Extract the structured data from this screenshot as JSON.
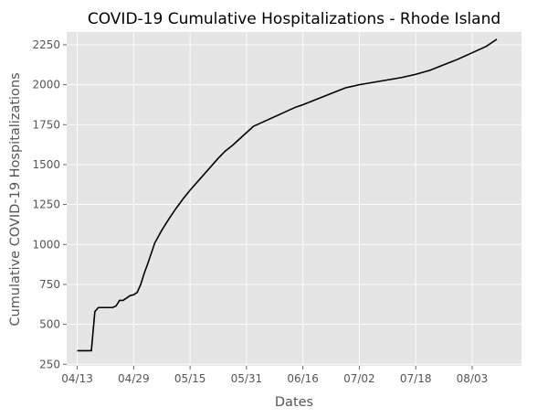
{
  "chart_data": {
    "type": "line",
    "title": "COVID-19 Cumulative Hospitalizations - Rhode Island",
    "xlabel": "Dates",
    "ylabel": "Cumulative COVID-19 Hospitalizations",
    "x_ticks": [
      "04/13",
      "04/29",
      "05/15",
      "05/31",
      "06/16",
      "07/02",
      "07/18",
      "08/03"
    ],
    "y_ticks": [
      250,
      500,
      750,
      1000,
      1250,
      1500,
      1750,
      2000,
      2250
    ],
    "xlim": [
      "2020-04-10",
      "2020-08-17"
    ],
    "ylim": [
      240,
      2330
    ],
    "grid": true,
    "colors": {
      "plot_bg": "#e5e5e5",
      "grid": "#ffffff",
      "line": "#000000"
    },
    "series": [
      {
        "x": [
          "2020-04-13",
          "2020-04-14",
          "2020-04-15",
          "2020-04-16",
          "2020-04-17",
          "2020-04-18",
          "2020-04-19",
          "2020-04-20",
          "2020-04-21",
          "2020-04-22",
          "2020-04-23",
          "2020-04-24",
          "2020-04-25",
          "2020-04-26",
          "2020-04-27",
          "2020-04-28",
          "2020-04-29",
          "2020-04-30",
          "2020-05-01",
          "2020-05-02",
          "2020-05-03",
          "2020-05-05",
          "2020-05-07",
          "2020-05-09",
          "2020-05-11",
          "2020-05-13",
          "2020-05-15",
          "2020-05-17",
          "2020-05-19",
          "2020-05-21",
          "2020-05-23",
          "2020-05-25",
          "2020-05-27",
          "2020-05-29",
          "2020-05-31",
          "2020-06-02",
          "2020-06-04",
          "2020-06-06",
          "2020-06-08",
          "2020-06-10",
          "2020-06-12",
          "2020-06-14",
          "2020-06-16",
          "2020-06-20",
          "2020-06-24",
          "2020-06-28",
          "2020-07-02",
          "2020-07-06",
          "2020-07-10",
          "2020-07-14",
          "2020-07-18",
          "2020-07-22",
          "2020-07-26",
          "2020-07-30",
          "2020-08-03",
          "2020-08-07",
          "2020-08-10"
        ],
        "y": [
          335,
          335,
          335,
          335,
          335,
          580,
          605,
          605,
          605,
          605,
          605,
          615,
          650,
          650,
          665,
          680,
          685,
          700,
          750,
          820,
          880,
          1010,
          1090,
          1160,
          1225,
          1285,
          1340,
          1390,
          1440,
          1490,
          1540,
          1585,
          1620,
          1660,
          1700,
          1740,
          1760,
          1780,
          1800,
          1820,
          1840,
          1860,
          1875,
          1910,
          1945,
          1980,
          2000,
          2015,
          2030,
          2045,
          2065,
          2090,
          2125,
          2160,
          2200,
          2240,
          2285
        ]
      }
    ]
  }
}
